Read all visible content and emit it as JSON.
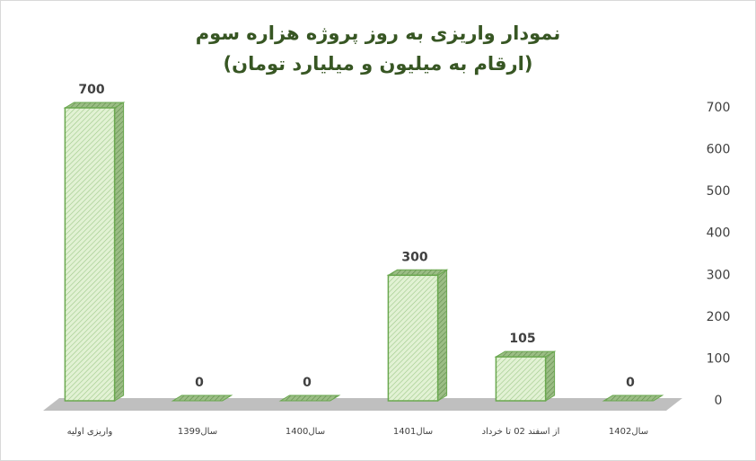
{
  "chart_data": {
    "type": "bar3d",
    "title": "نمودار واریزی به روز پروژه هزاره سوم",
    "subtitle": "(ارقام به میلیون و میلیارد تومان)",
    "categories": [
      "واریزی اولیه",
      "سال1399",
      "سال1400",
      "سال1401",
      "از اسفند 02 تا خرداد",
      "سال1402"
    ],
    "values": [
      700,
      0,
      0,
      300,
      105,
      0
    ],
    "color": "#d8efc4",
    "edge_color": "#6aa84f",
    "ylim": [
      0,
      700
    ],
    "yticks": [
      0,
      100,
      200,
      300,
      400,
      500,
      600,
      700
    ],
    "y_axis_side": "right",
    "grid": false
  }
}
